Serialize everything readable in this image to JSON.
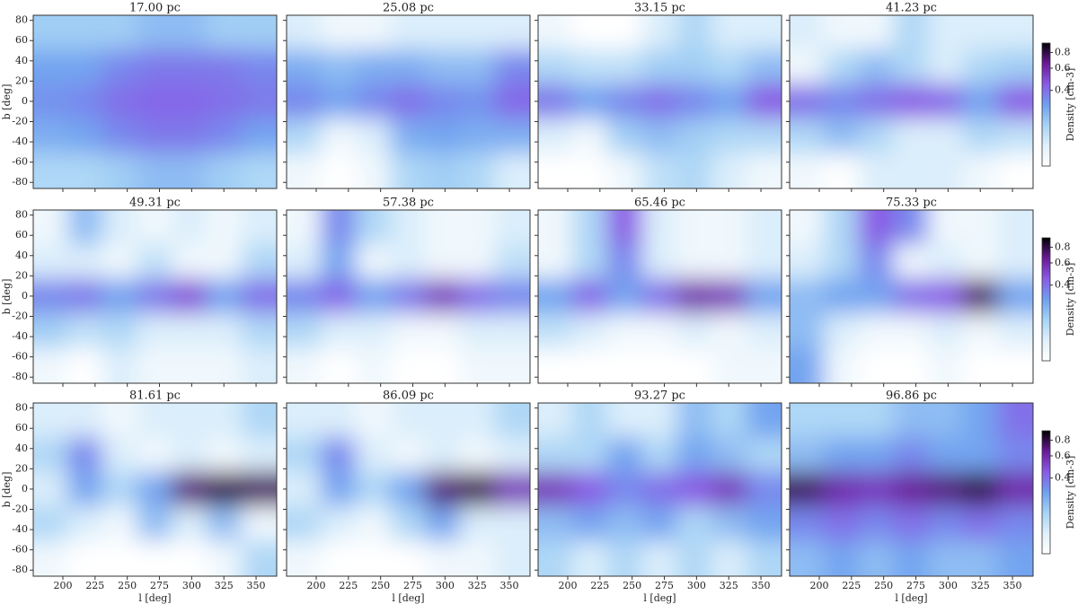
{
  "chart_data": {
    "type": "heatmap",
    "xlabel": "l [deg]",
    "ylabel": "b [deg]",
    "colorbar_label": "Density [cm-3]",
    "xlim": [
      177,
      366
    ],
    "ylim": [
      -86,
      85
    ],
    "xticks": [
      200,
      225,
      250,
      275,
      300,
      325,
      350
    ],
    "yticks": [
      -80,
      -60,
      -40,
      -20,
      0,
      20,
      40,
      60,
      80
    ],
    "clim": [
      0.1,
      0.95
    ],
    "cscale": "log",
    "cticks": [
      0.4,
      0.6,
      0.8
    ],
    "colormap": [
      "#ffffff",
      "#e0f0fb",
      "#a6d3f5",
      "#6fa0f0",
      "#8a5ae6",
      "#6a1a98",
      "#000000"
    ],
    "x": [
      190,
      217,
      244,
      271,
      298,
      325,
      352
    ],
    "y": [
      68,
      34,
      0,
      -34,
      -68
    ],
    "panels": [
      {
        "title": "17.00 pc",
        "values": [
          [
            0.22,
            0.22,
            0.22,
            0.25,
            0.25,
            0.22,
            0.22
          ],
          [
            0.3,
            0.3,
            0.35,
            0.38,
            0.38,
            0.38,
            0.35
          ],
          [
            0.33,
            0.35,
            0.4,
            0.42,
            0.42,
            0.4,
            0.38
          ],
          [
            0.28,
            0.3,
            0.35,
            0.38,
            0.38,
            0.35,
            0.3
          ],
          [
            0.2,
            0.2,
            0.22,
            0.25,
            0.25,
            0.22,
            0.2
          ]
        ]
      },
      {
        "title": "25.08 pc",
        "values": [
          [
            0.15,
            0.12,
            0.12,
            0.15,
            0.15,
            0.15,
            0.15
          ],
          [
            0.28,
            0.25,
            0.28,
            0.28,
            0.25,
            0.25,
            0.35
          ],
          [
            0.35,
            0.3,
            0.35,
            0.4,
            0.35,
            0.33,
            0.42
          ],
          [
            0.2,
            0.12,
            0.15,
            0.28,
            0.3,
            0.28,
            0.28
          ],
          [
            0.12,
            0.1,
            0.12,
            0.2,
            0.22,
            0.2,
            0.15
          ]
        ]
      },
      {
        "title": "33.15 pc",
        "values": [
          [
            0.12,
            0.1,
            0.1,
            0.15,
            0.2,
            0.15,
            0.15
          ],
          [
            0.2,
            0.18,
            0.18,
            0.22,
            0.22,
            0.2,
            0.25
          ],
          [
            0.38,
            0.3,
            0.35,
            0.4,
            0.35,
            0.3,
            0.45
          ],
          [
            0.15,
            0.12,
            0.22,
            0.25,
            0.22,
            0.2,
            0.2
          ],
          [
            0.1,
            0.1,
            0.12,
            0.18,
            0.2,
            0.15,
            0.12
          ]
        ]
      },
      {
        "title": "41.23 pc",
        "values": [
          [
            0.15,
            0.12,
            0.12,
            0.2,
            0.15,
            0.15,
            0.15
          ],
          [
            0.12,
            0.2,
            0.25,
            0.2,
            0.15,
            0.2,
            0.22
          ],
          [
            0.4,
            0.35,
            0.4,
            0.45,
            0.42,
            0.3,
            0.45
          ],
          [
            0.2,
            0.25,
            0.2,
            0.15,
            0.15,
            0.2,
            0.18
          ],
          [
            0.12,
            0.1,
            0.15,
            0.15,
            0.15,
            0.12,
            0.1
          ]
        ]
      },
      {
        "title": "49.31 pc",
        "values": [
          [
            0.12,
            0.25,
            0.15,
            0.12,
            0.15,
            0.12,
            0.15
          ],
          [
            0.15,
            0.15,
            0.12,
            0.18,
            0.12,
            0.12,
            0.2
          ],
          [
            0.35,
            0.38,
            0.3,
            0.38,
            0.48,
            0.3,
            0.4
          ],
          [
            0.22,
            0.18,
            0.2,
            0.15,
            0.15,
            0.15,
            0.2
          ],
          [
            0.12,
            0.1,
            0.15,
            0.12,
            0.12,
            0.12,
            0.15
          ]
        ]
      },
      {
        "title": "57.38 pc",
        "values": [
          [
            0.12,
            0.35,
            0.2,
            0.15,
            0.12,
            0.12,
            0.15
          ],
          [
            0.15,
            0.3,
            0.12,
            0.15,
            0.12,
            0.12,
            0.18
          ],
          [
            0.35,
            0.42,
            0.3,
            0.38,
            0.55,
            0.4,
            0.35
          ],
          [
            0.2,
            0.15,
            0.15,
            0.12,
            0.12,
            0.15,
            0.15
          ],
          [
            0.12,
            0.1,
            0.12,
            0.1,
            0.1,
            0.12,
            0.12
          ]
        ]
      },
      {
        "title": "65.46 pc",
        "values": [
          [
            0.12,
            0.2,
            0.45,
            0.15,
            0.12,
            0.12,
            0.15
          ],
          [
            0.12,
            0.2,
            0.35,
            0.15,
            0.12,
            0.12,
            0.15
          ],
          [
            0.3,
            0.42,
            0.3,
            0.4,
            0.6,
            0.55,
            0.3
          ],
          [
            0.18,
            0.15,
            0.12,
            0.12,
            0.15,
            0.12,
            0.15
          ],
          [
            0.1,
            0.1,
            0.1,
            0.1,
            0.1,
            0.12,
            0.12
          ]
        ]
      },
      {
        "title": "75.33 pc",
        "values": [
          [
            0.12,
            0.2,
            0.45,
            0.35,
            0.12,
            0.12,
            0.15
          ],
          [
            0.15,
            0.2,
            0.35,
            0.12,
            0.15,
            0.12,
            0.15
          ],
          [
            0.25,
            0.3,
            0.3,
            0.4,
            0.45,
            0.75,
            0.3
          ],
          [
            0.25,
            0.15,
            0.12,
            0.12,
            0.15,
            0.12,
            0.15
          ],
          [
            0.3,
            0.12,
            0.1,
            0.1,
            0.12,
            0.1,
            0.1
          ]
        ]
      },
      {
        "title": "81.61 pc",
        "values": [
          [
            0.15,
            0.15,
            0.12,
            0.15,
            0.15,
            0.15,
            0.2
          ],
          [
            0.2,
            0.35,
            0.15,
            0.12,
            0.15,
            0.12,
            0.15
          ],
          [
            0.15,
            0.3,
            0.2,
            0.3,
            0.7,
            0.8,
            0.75
          ],
          [
            0.2,
            0.15,
            0.12,
            0.25,
            0.15,
            0.25,
            0.12
          ],
          [
            0.12,
            0.1,
            0.1,
            0.1,
            0.1,
            0.12,
            0.2
          ]
        ]
      },
      {
        "title": "86.09 pc",
        "values": [
          [
            0.15,
            0.15,
            0.12,
            0.15,
            0.15,
            0.15,
            0.2
          ],
          [
            0.2,
            0.35,
            0.15,
            0.12,
            0.15,
            0.12,
            0.15
          ],
          [
            0.15,
            0.3,
            0.2,
            0.3,
            0.7,
            0.8,
            0.55
          ],
          [
            0.2,
            0.15,
            0.12,
            0.2,
            0.3,
            0.15,
            0.15
          ],
          [
            0.12,
            0.1,
            0.1,
            0.1,
            0.12,
            0.12,
            0.15
          ]
        ]
      },
      {
        "title": "93.27 pc",
        "values": [
          [
            0.15,
            0.2,
            0.15,
            0.15,
            0.25,
            0.2,
            0.3
          ],
          [
            0.2,
            0.2,
            0.3,
            0.2,
            0.3,
            0.25,
            0.2
          ],
          [
            0.55,
            0.45,
            0.35,
            0.4,
            0.45,
            0.55,
            0.35
          ],
          [
            0.25,
            0.3,
            0.25,
            0.3,
            0.2,
            0.25,
            0.3
          ],
          [
            0.2,
            0.15,
            0.2,
            0.15,
            0.2,
            0.15,
            0.2
          ]
        ]
      },
      {
        "title": "96.86 pc",
        "values": [
          [
            0.2,
            0.2,
            0.2,
            0.25,
            0.25,
            0.3,
            0.4
          ],
          [
            0.25,
            0.3,
            0.3,
            0.35,
            0.3,
            0.3,
            0.35
          ],
          [
            0.75,
            0.6,
            0.55,
            0.65,
            0.7,
            0.8,
            0.6
          ],
          [
            0.35,
            0.4,
            0.35,
            0.4,
            0.35,
            0.4,
            0.35
          ],
          [
            0.25,
            0.3,
            0.25,
            0.3,
            0.25,
            0.25,
            0.3
          ]
        ]
      }
    ]
  }
}
